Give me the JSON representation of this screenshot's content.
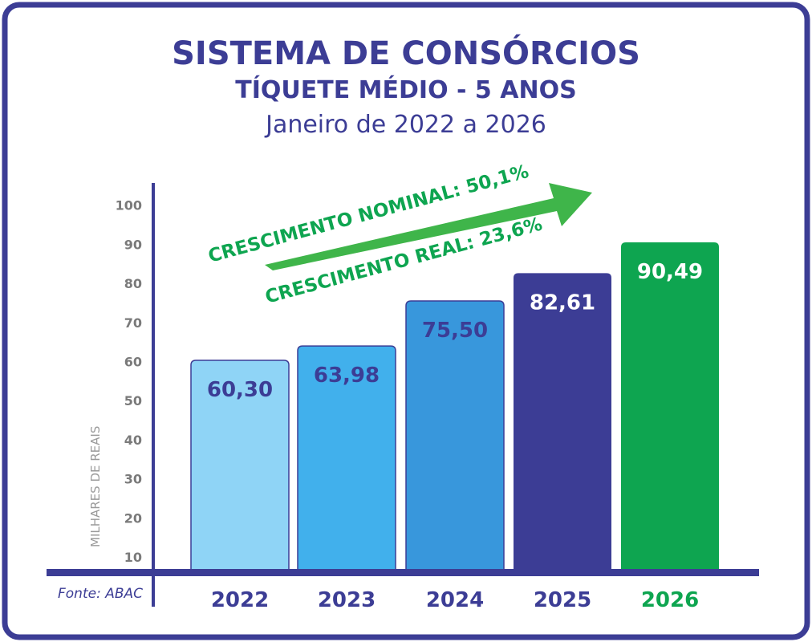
{
  "colors": {
    "navy": "#3c3d95",
    "green": "#0ea550",
    "axis_gray": "#7a7a7a",
    "bar_colors": [
      "#8fd4f6",
      "#41b0ec",
      "#3897dc",
      "#3c3d95",
      "#0ea550"
    ],
    "label_colors": [
      "#3c3d95",
      "#3c3d95",
      "#3c3d95",
      "#ffffff",
      "#ffffff"
    ],
    "year_colors": [
      "#3c3d95",
      "#3c3d95",
      "#3c3d95",
      "#3c3d95",
      "#0ea550"
    ]
  },
  "chart_data": {
    "type": "bar",
    "title": "SISTEMA DE CONSÓRCIOS",
    "subtitle": "TÍQUETE MÉDIO - 5 ANOS",
    "period": "Janeiro de 2022 a 2026",
    "categories": [
      "2022",
      "2023",
      "2024",
      "2025",
      "2026"
    ],
    "values": [
      60.3,
      63.98,
      75.5,
      82.61,
      90.49
    ],
    "data_labels": [
      "60,30",
      "63,98",
      "75,50",
      "82,61",
      "90,49"
    ],
    "ylabel": "MILHARES DE REAIS",
    "xlabel": "",
    "yticks": [
      "10",
      "20",
      "30",
      "40",
      "50",
      "60",
      "70",
      "80",
      "90",
      "100"
    ],
    "ylim": [
      10,
      100
    ],
    "grid": false,
    "annotations": [
      "CRESCIMENTO NOMINAL: 50,1%",
      "CRESCIMENTO REAL: 23,6%"
    ],
    "source": "Fonte: ABAC"
  }
}
